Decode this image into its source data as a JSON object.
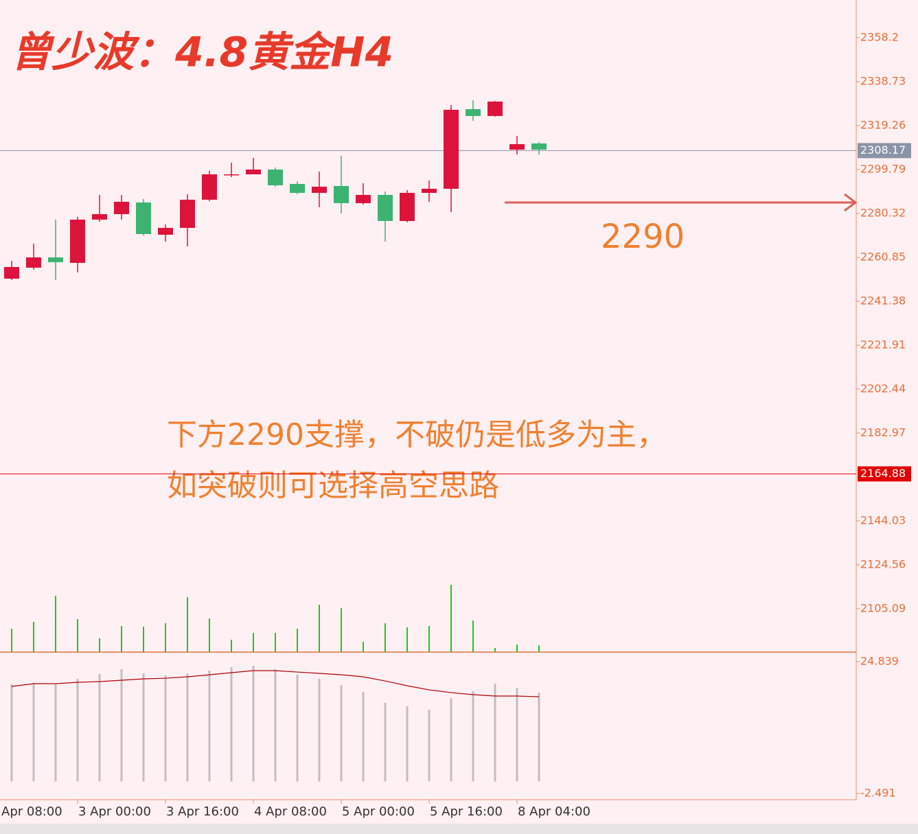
{
  "chart_data": [
    {
      "type": "candlestick",
      "title": "曾少波：4.8黄金H4",
      "annotations": [
        "2290",
        "下方2290支撑，不破仍是低多为主，",
        "如突破则可选择高空思路"
      ],
      "arrow_value": 2285.19,
      "open": [
        2251.42,
        2256.29,
        2260.85,
        2258.42,
        2277.59,
        2280.02,
        2285.19,
        2270.89,
        2273.93,
        2286.41,
        2297.36,
        2297.66,
        2299.79,
        2293.4,
        2289.45,
        2292.49,
        2284.89,
        2288.54,
        2276.98,
        2289.45,
        2291.27,
        2326.56,
        2323.52,
        2308.61,
        2311.35
      ],
      "high": [
        2259.33,
        2266.94,
        2277.59,
        2278.8,
        2288.54,
        2288.54,
        2286.71,
        2275.46,
        2288.84,
        2299.18,
        2302.83,
        2304.96,
        2300.71,
        2294.62,
        2298.88,
        2305.88,
        2293.71,
        2290.06,
        2290.67,
        2294.93,
        2328.39,
        2330.52,
        2330.21,
        2314.7,
        2311.96
      ],
      "low": [
        2250.82,
        2255.38,
        2250.82,
        2254.16,
        2276.67,
        2277.59,
        2270.59,
        2267.85,
        2265.72,
        2285.8,
        2296.45,
        2297.66,
        2292.19,
        2288.84,
        2283.06,
        2280.32,
        2284.28,
        2267.85,
        2276.37,
        2285.5,
        2280.93,
        2321.39,
        2323.22,
        2306.48,
        2306.48
      ],
      "close": [
        2256.6,
        2260.85,
        2258.73,
        2277.59,
        2280.02,
        2285.5,
        2271.2,
        2273.93,
        2286.41,
        2297.66,
        2297.66,
        2299.79,
        2292.8,
        2289.45,
        2292.19,
        2284.89,
        2288.54,
        2276.98,
        2289.45,
        2291.27,
        2326.26,
        2323.52,
        2329.91,
        2311.05,
        2308.61
      ],
      "volume": [
        34,
        44,
        82,
        48,
        20,
        38,
        37,
        42,
        80,
        49,
        18,
        28,
        28,
        34,
        69,
        64,
        15,
        42,
        36,
        38,
        98,
        46,
        6,
        11,
        10
      ],
      "up_color": "#dc143c",
      "down_color": "#3cb371",
      "volume_color": "#1ec81e",
      "ylim": [
        2085.9,
        2374.93
      ],
      "yticks": [
        2358.2,
        2338.73,
        2319.26,
        2299.79,
        2280.32,
        2260.85,
        2241.38,
        2221.91,
        2202.44,
        2182.97,
        2144.03,
        2124.56,
        2105.09
      ],
      "price_lines": [
        {
          "value": 2308.17,
          "color": "#8a94a6"
        },
        {
          "value": 2164.88,
          "color": "#e00000"
        }
      ],
      "xticks": [
        {
          "value": -1,
          "label": "Apr 08:00"
        },
        {
          "value": 3,
          "label": "3 Apr 00:00"
        },
        {
          "value": 7,
          "label": "3 Apr 16:00"
        },
        {
          "value": 11,
          "label": "4 Apr 08:00"
        },
        {
          "value": 15,
          "label": "5 Apr 00:00"
        },
        {
          "value": 19,
          "label": "5 Apr 16:00"
        },
        {
          "value": 23,
          "label": "8 Apr 04:00"
        }
      ]
    },
    {
      "type": "bar",
      "ylim": [
        -3.77,
        26.55
      ],
      "yticks": [
        24.839,
        -2.491
      ],
      "series": [
        {
          "type": "bar",
          "color": "#c4bcc0",
          "values": [
            20.14,
            20.43,
            20.14,
            21.28,
            22.28,
            23.27,
            22.42,
            21.99,
            22.42,
            22.99,
            23.7,
            23.99,
            23.27,
            22.14,
            21.28,
            20.0,
            18.58,
            16.3,
            15.59,
            14.88,
            17.3,
            18.72,
            20.29,
            19.43,
            18.43
          ]
        },
        {
          "type": "line",
          "color": "#b00000",
          "values": [
            19.72,
            20.29,
            20.29,
            20.57,
            20.71,
            21.0,
            21.28,
            21.42,
            21.71,
            22.14,
            22.56,
            22.99,
            22.99,
            22.7,
            22.42,
            22.14,
            21.71,
            20.85,
            19.86,
            19.0,
            18.43,
            18.01,
            17.72,
            17.72,
            17.58
          ]
        }
      ]
    }
  ]
}
